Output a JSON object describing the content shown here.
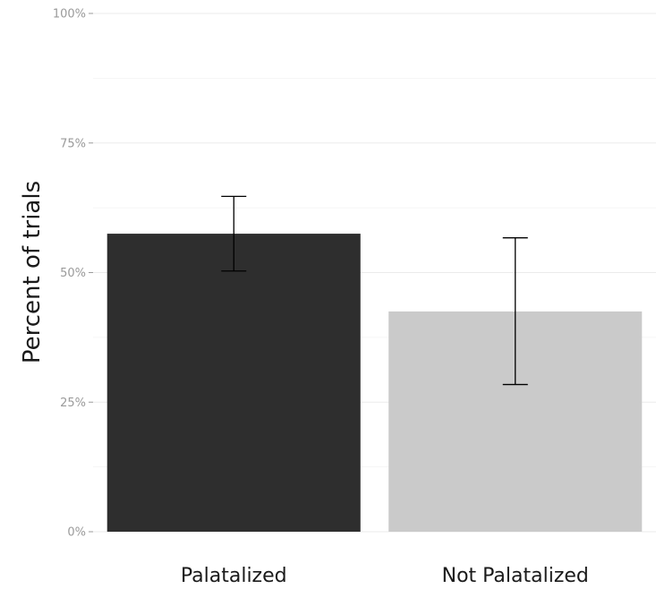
{
  "chart_data": {
    "type": "bar",
    "title": "",
    "xlabel": "",
    "ylabel": "Percent of trials",
    "ylim": [
      0,
      1
    ],
    "y_ticks": [
      0,
      0.25,
      0.5,
      0.75,
      1.0
    ],
    "y_tick_labels": [
      "0%",
      "25%",
      "50%",
      "75%",
      "100%"
    ],
    "grid": true,
    "legend": "none",
    "categories": [
      "Palatalized",
      "Not Palatalized"
    ],
    "values": [
      0.575,
      0.425
    ],
    "error_low": [
      0.503,
      0.284
    ],
    "error_high": [
      0.647,
      0.567
    ],
    "colors": [
      "#2e2e2e",
      "#cacaca"
    ],
    "gridline_color": "#ebebeb",
    "errorbar_color": "#000000"
  }
}
